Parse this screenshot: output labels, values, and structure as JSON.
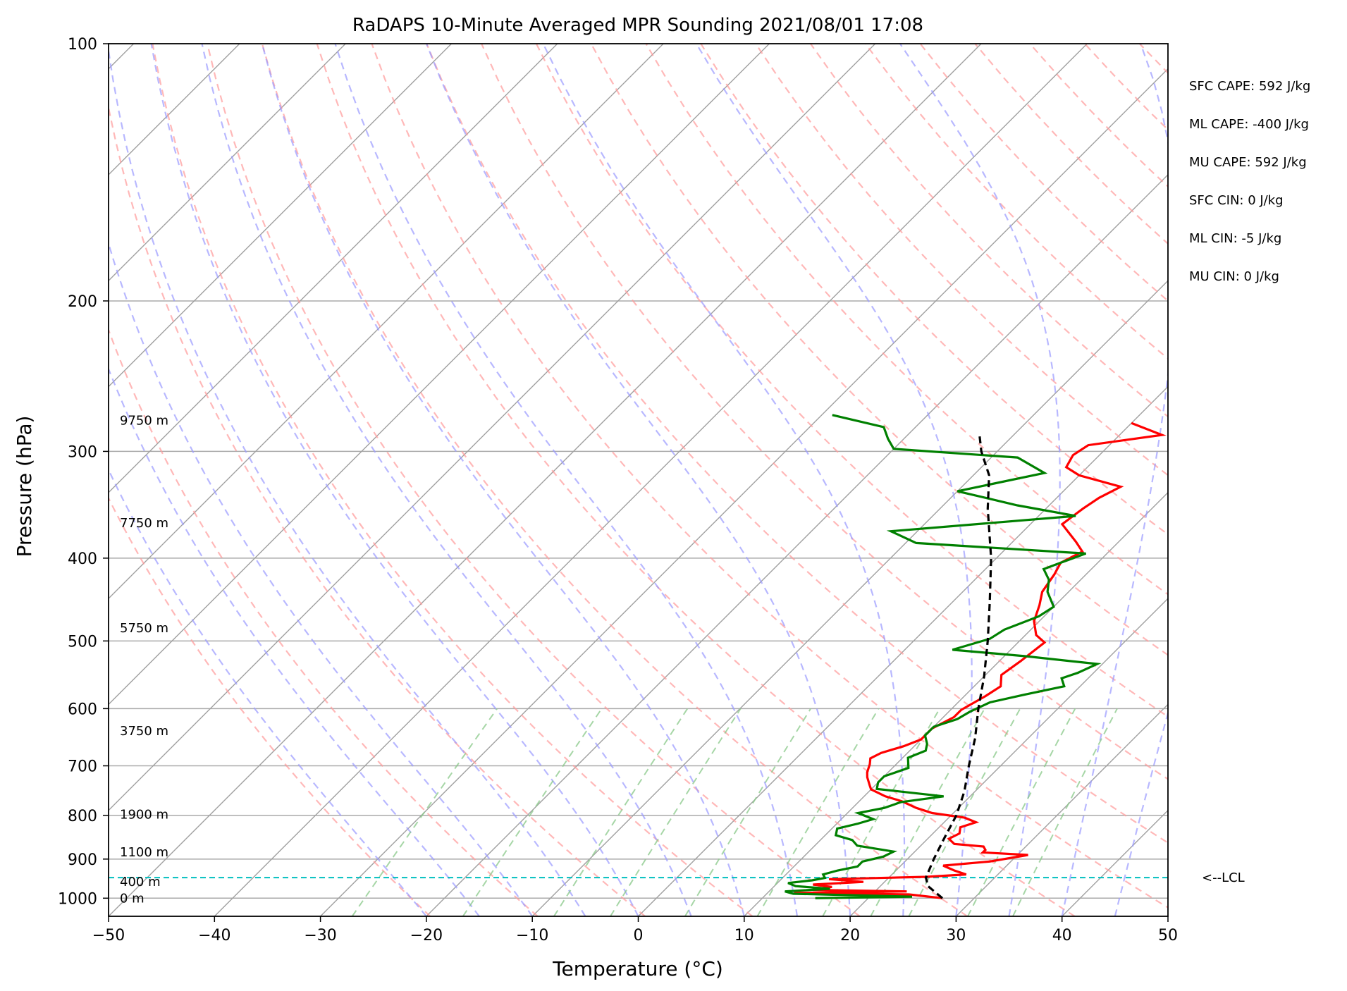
{
  "chart_data": {
    "type": "line",
    "title": "RaDAPS 10-Minute Averaged MPR Sounding 2021/08/01 17:08",
    "xlabel": "Temperature (°C)",
    "ylabel": "Pressure (hPa)",
    "xlim": [
      -50,
      50
    ],
    "ylim": [
      1050,
      100
    ],
    "y_scale": "log",
    "x_ticks": [
      "−50",
      "−40",
      "−30",
      "−20",
      "−10",
      "0",
      "10",
      "20",
      "30",
      "40",
      "50"
    ],
    "y_ticks": [
      "100",
      "200",
      "300",
      "400",
      "500",
      "600",
      "700",
      "800",
      "900",
      "1000"
    ],
    "height_labels": [
      {
        "text": "9750 m",
        "pressure": 276
      },
      {
        "text": "7750 m",
        "pressure": 364
      },
      {
        "text": "5750 m",
        "pressure": 483
      },
      {
        "text": "3750 m",
        "pressure": 637
      },
      {
        "text": "1900 m",
        "pressure": 798
      },
      {
        "text": "1100 m",
        "pressure": 883
      },
      {
        "text": "400 m",
        "pressure": 957
      },
      {
        "text": "0 m",
        "pressure": 1000
      }
    ],
    "lcl": {
      "label": "<--LCL",
      "pressure": 946
    },
    "indices": [
      "SFC CAPE: 592 J/kg",
      "ML CAPE: -400 J/kg",
      "MU CAPE: 592 J/kg",
      "SFC CIN: 0 J/kg",
      "ML CIN: -5 J/kg",
      "MU CIN: 0 J/kg"
    ],
    "series": [
      {
        "color": "#ff0000",
        "points": [
          [
            1000,
            27.0
          ],
          [
            990,
            23.5
          ],
          [
            986,
            12.5
          ],
          [
            982,
            23.0
          ],
          [
            978,
            14.0
          ],
          [
            970,
            15.5
          ],
          [
            964,
            13.5
          ],
          [
            957,
            18.0
          ],
          [
            950,
            14.5
          ],
          [
            944,
            23.5
          ],
          [
            938,
            27.0
          ],
          [
            928,
            25.5
          ],
          [
            916,
            24.0
          ],
          [
            906,
            28.0
          ],
          [
            890,
            31.0
          ],
          [
            884,
            26.5
          ],
          [
            878,
            26.5
          ],
          [
            870,
            26.0
          ],
          [
            864,
            23.0
          ],
          [
            852,
            22.0
          ],
          [
            840,
            22.5
          ],
          [
            826,
            22.0
          ],
          [
            815,
            23.0
          ],
          [
            805,
            21.5
          ],
          [
            795,
            18.0
          ],
          [
            784,
            16.0
          ],
          [
            770,
            14.0
          ],
          [
            760,
            12.0
          ],
          [
            746,
            10.0
          ],
          [
            738,
            9.5
          ],
          [
            722,
            8.5
          ],
          [
            712,
            8.0
          ],
          [
            697,
            7.5
          ],
          [
            686,
            7.0
          ],
          [
            676,
            7.5
          ],
          [
            664,
            9.0
          ],
          [
            652,
            10.0
          ],
          [
            633,
            10.0
          ],
          [
            614,
            11.0
          ],
          [
            602,
            11.0
          ],
          [
            580,
            12.0
          ],
          [
            565,
            12.5
          ],
          [
            548,
            11.5
          ],
          [
            528,
            12.0
          ],
          [
            502,
            12.5
          ],
          [
            492,
            11.0
          ],
          [
            474,
            9.5
          ],
          [
            454,
            8.5
          ],
          [
            438,
            7.5
          ],
          [
            418,
            7.0
          ],
          [
            405,
            6.5
          ],
          [
            393,
            7.5
          ],
          [
            383,
            6.0
          ],
          [
            365,
            3.0
          ],
          [
            350,
            3.5
          ],
          [
            340,
            4.0
          ],
          [
            330,
            5.0
          ],
          [
            320,
            0.0
          ],
          [
            313,
            -2.0
          ],
          [
            303,
            -2.5
          ],
          [
            295,
            -2.0
          ],
          [
            287,
            4.0
          ],
          [
            278,
            0.0
          ]
        ]
      },
      {
        "color": "#008000",
        "points": [
          [
            1000,
            15.0
          ],
          [
            996,
            24.0
          ],
          [
            988,
            12.5
          ],
          [
            982,
            11.5
          ],
          [
            975,
            15.5
          ],
          [
            968,
            12.0
          ],
          [
            960,
            11.0
          ],
          [
            953,
            13.0
          ],
          [
            947,
            14.0
          ],
          [
            938,
            13.5
          ],
          [
            928,
            14.5
          ],
          [
            918,
            16.0
          ],
          [
            906,
            16.0
          ],
          [
            894,
            17.5
          ],
          [
            882,
            18.0
          ],
          [
            868,
            14.0
          ],
          [
            855,
            13.0
          ],
          [
            844,
            11.0
          ],
          [
            829,
            10.5
          ],
          [
            818,
            12.0
          ],
          [
            808,
            13.0
          ],
          [
            795,
            11.0
          ],
          [
            784,
            13.0
          ],
          [
            772,
            14.0
          ],
          [
            760,
            17.5
          ],
          [
            745,
            10.5
          ],
          [
            732,
            10.0
          ],
          [
            720,
            10.0
          ],
          [
            704,
            11.5
          ],
          [
            685,
            10.5
          ],
          [
            672,
            11.5
          ],
          [
            660,
            11.0
          ],
          [
            645,
            10.0
          ],
          [
            630,
            10.0
          ],
          [
            617,
            11.5
          ],
          [
            605,
            12.0
          ],
          [
            590,
            13.0
          ],
          [
            578,
            15.5
          ],
          [
            565,
            18.5
          ],
          [
            553,
            17.5
          ],
          [
            545,
            18.5
          ],
          [
            532,
            19.5
          ],
          [
            521,
            12.0
          ],
          [
            512,
            4.5
          ],
          [
            497,
            7.0
          ],
          [
            485,
            7.5
          ],
          [
            468,
            9.5
          ],
          [
            456,
            10.0
          ],
          [
            438,
            8.0
          ],
          [
            424,
            7.0
          ],
          [
            412,
            5.5
          ],
          [
            405,
            6.5
          ],
          [
            395,
            8.0
          ],
          [
            384,
            -9.0
          ],
          [
            372,
            -12.5
          ],
          [
            357,
            3.5
          ],
          [
            347,
            -3.0
          ],
          [
            334,
            -10.0
          ],
          [
            318,
            -3.5
          ],
          [
            305,
            -7.5
          ],
          [
            298,
            -20.0
          ],
          [
            290,
            -21.5
          ],
          [
            281,
            -23.0
          ],
          [
            272,
            -29.0
          ]
        ]
      },
      {
        "color": "#000000",
        "dashed": true,
        "points": [
          [
            1000,
            27.0
          ],
          [
            968,
            24.5
          ],
          [
            946,
            23.5
          ],
          [
            900,
            22.5
          ],
          [
            850,
            21.5
          ],
          [
            800,
            20.5
          ],
          [
            750,
            19.0
          ],
          [
            700,
            17.0
          ],
          [
            650,
            15.0
          ],
          [
            600,
            12.5
          ],
          [
            550,
            10.0
          ],
          [
            500,
            7.0
          ],
          [
            450,
            3.5
          ],
          [
            400,
            -0.5
          ],
          [
            350,
            -5.5
          ],
          [
            320,
            -8.5
          ],
          [
            300,
            -11.5
          ],
          [
            285,
            -13.5
          ]
        ]
      }
    ]
  }
}
